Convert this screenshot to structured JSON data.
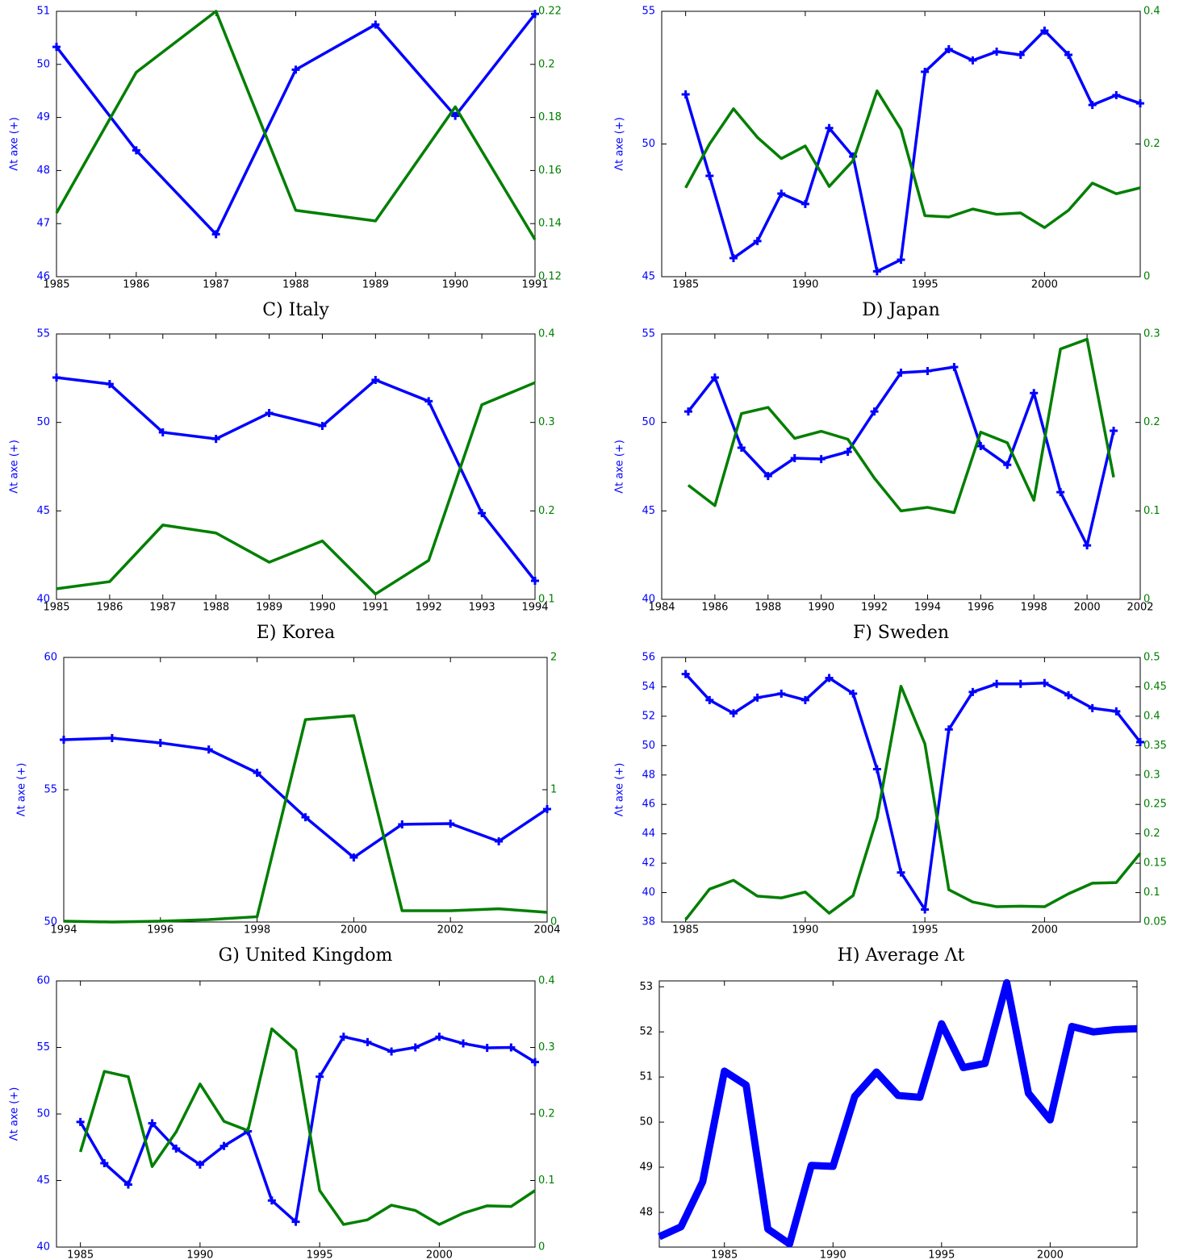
{
  "chart_data": [
    {
      "type": "line",
      "title": "C) Italy",
      "ylabel": "Λt axe (+)",
      "x": [
        1985,
        1986,
        1987,
        1988,
        1989,
        1990,
        1991
      ],
      "xlim": [
        1985,
        1991
      ],
      "xticks": [
        1985,
        1986,
        1987,
        1988,
        1989,
        1990,
        1991
      ],
      "ylim": [
        46,
        51
      ],
      "yticks": [
        46,
        47,
        48,
        49,
        50,
        51
      ],
      "y2lim": [
        0.12,
        0.22
      ],
      "y2ticks": [
        0.12,
        0.14,
        0.16,
        0.18,
        0.2,
        0.22
      ],
      "series": [
        {
          "color": "#0000ff",
          "marker": "+",
          "values": [
            50.33,
            48.38,
            46.8,
            49.9,
            50.75,
            49.03,
            50.95
          ]
        },
        {
          "color": "#007f00",
          "axis": "y2",
          "values": [
            0.144,
            0.197,
            0.22,
            0.145,
            0.141,
            0.184,
            0.134
          ]
        }
      ]
    },
    {
      "type": "line",
      "title": "D) Japan",
      "ylabel": "Λt axe (+)",
      "x": [
        1985,
        1986,
        1987,
        1988,
        1989,
        1990,
        1991,
        1992,
        1993,
        1994,
        1995,
        1996,
        1997,
        1998,
        1999,
        2000,
        2001,
        2002,
        2003,
        2004
      ],
      "xlim": [
        1984,
        2004
      ],
      "xticks": [
        1985,
        1990,
        1995,
        2000
      ],
      "ylim": [
        45,
        55
      ],
      "yticks": [
        45,
        50,
        55
      ],
      "y2lim": [
        0,
        0.4
      ],
      "y2ticks": [
        0,
        0.2,
        0.4
      ],
      "series": [
        {
          "color": "#0000ff",
          "marker": "+",
          "values": [
            51.87,
            48.8,
            45.7,
            46.34,
            48.13,
            47.74,
            50.6,
            49.53,
            45.2,
            45.64,
            52.72,
            53.57,
            53.15,
            53.48,
            53.36,
            54.27,
            53.36,
            51.47,
            51.84,
            51.53
          ]
        },
        {
          "color": "#007f00",
          "axis": "y2",
          "values": [
            0.134,
            0.2,
            0.253,
            0.21,
            0.178,
            0.197,
            0.136,
            0.175,
            0.28,
            0.222,
            0.092,
            0.09,
            0.102,
            0.094,
            0.096,
            0.074,
            0.1,
            0.141,
            0.125,
            0.134
          ]
        }
      ]
    },
    {
      "type": "line",
      "title": "E) Korea",
      "ylabel": "Λt axe (+)",
      "x": [
        1985,
        1986,
        1987,
        1988,
        1989,
        1990,
        1991,
        1992,
        1993,
        1994
      ],
      "xlim": [
        1985,
        1994
      ],
      "xticks": [
        1985,
        1986,
        1987,
        1988,
        1989,
        1990,
        1991,
        1992,
        1993,
        1994
      ],
      "ylim": [
        40,
        55
      ],
      "yticks": [
        40,
        45,
        50,
        55
      ],
      "y2lim": [
        0.1,
        0.4
      ],
      "y2ticks": [
        0.1,
        0.2,
        0.3,
        0.4
      ],
      "series": [
        {
          "color": "#0000ff",
          "marker": "+",
          "values": [
            52.54,
            52.17,
            49.44,
            49.07,
            50.53,
            49.8,
            52.4,
            51.2,
            44.87,
            41.05
          ]
        },
        {
          "color": "#007f00",
          "axis": "y2",
          "values": [
            0.112,
            0.12,
            0.184,
            0.175,
            0.142,
            0.166,
            0.106,
            0.144,
            0.32,
            0.345
          ]
        }
      ]
    },
    {
      "type": "line",
      "title": "F) Sweden",
      "ylabel": "Λt axe (+)",
      "x": [
        1985,
        1986,
        1987,
        1988,
        1989,
        1990,
        1991,
        1992,
        1993,
        1994,
        1995,
        1996,
        1997,
        1998,
        1999,
        2000,
        2001
      ],
      "xlim": [
        1984,
        2002
      ],
      "xticks": [
        1984,
        1986,
        1988,
        1990,
        1992,
        1994,
        1996,
        1998,
        2000,
        2002
      ],
      "ylim": [
        40,
        55
      ],
      "yticks": [
        40,
        45,
        50,
        55
      ],
      "y2lim": [
        0,
        0.3
      ],
      "y2ticks": [
        0,
        0.1,
        0.2,
        0.3
      ],
      "series": [
        {
          "color": "#0000ff",
          "marker": "+",
          "values": [
            50.62,
            52.54,
            48.57,
            46.97,
            47.98,
            47.93,
            48.34,
            50.62,
            52.81,
            52.9,
            53.13,
            48.66,
            47.6,
            51.66,
            46.06,
            43.05,
            49.53
          ]
        },
        {
          "color": "#007f00",
          "axis": "y2",
          "values": [
            0.129,
            0.106,
            0.21,
            0.217,
            0.182,
            0.19,
            0.181,
            0.137,
            0.1,
            0.104,
            0.098,
            0.189,
            0.177,
            0.112,
            0.283,
            0.294,
            0.138
          ]
        }
      ]
    },
    {
      "type": "line",
      "title": "G) United Kingdom",
      "ylabel": "Λt axe (+)",
      "x": [
        1994,
        1995,
        1996,
        1997,
        1998,
        1999,
        2000,
        2001,
        2002,
        2003,
        2004
      ],
      "xlim": [
        1994,
        2004
      ],
      "xticks": [
        1994,
        1996,
        1998,
        2000,
        2002,
        2004
      ],
      "ylim": [
        50,
        60
      ],
      "yticks": [
        50,
        55,
        60
      ],
      "y2lim": [
        0,
        2
      ],
      "y2ticks": [
        0,
        1,
        2
      ],
      "series": [
        {
          "color": "#0000ff",
          "marker": "+",
          "values": [
            56.89,
            56.95,
            56.77,
            56.52,
            55.64,
            53.96,
            52.44,
            53.69,
            53.72,
            53.05,
            54.27
          ]
        },
        {
          "color": "#007f00",
          "axis": "y2",
          "values": [
            0.006,
            0,
            0.006,
            0.018,
            0.04,
            1.53,
            1.56,
            0.085,
            0.085,
            0.1,
            0.073
          ]
        }
      ]
    },
    {
      "type": "line",
      "title": "H) Average Λt",
      "ylabel": "Λt axe (+)",
      "x": [
        1985,
        1986,
        1987,
        1988,
        1989,
        1990,
        1991,
        1992,
        1993,
        1994,
        1995,
        1996,
        1997,
        1998,
        1999,
        2000,
        2001,
        2002,
        2003,
        2004
      ],
      "xlim": [
        1984,
        2004
      ],
      "xticks": [
        1985,
        1990,
        1995,
        2000
      ],
      "ylim": [
        38,
        56
      ],
      "yticks": [
        38,
        40,
        42,
        44,
        46,
        48,
        50,
        52,
        54,
        56
      ],
      "y2lim": [
        0.05,
        0.5
      ],
      "y2ticks": [
        0.05,
        0.1,
        0.15,
        0.2,
        0.25,
        0.3,
        0.35,
        0.4,
        0.45,
        0.5
      ],
      "series": [
        {
          "color": "#0000ff",
          "marker": "+",
          "values": [
            54.87,
            53.1,
            52.2,
            53.26,
            53.54,
            53.1,
            54.6,
            53.54,
            48.4,
            41.37,
            38.85,
            51.1,
            53.65,
            54.2,
            54.2,
            54.26,
            53.43,
            52.55,
            52.33,
            50.24
          ]
        },
        {
          "color": "#007f00",
          "axis": "y2",
          "values": [
            0.054,
            0.106,
            0.121,
            0.094,
            0.091,
            0.101,
            0.065,
            0.095,
            0.227,
            0.451,
            0.353,
            0.105,
            0.084,
            0.076,
            0.077,
            0.076,
            0.098,
            0.116,
            0.117,
            0.167
          ]
        }
      ]
    },
    {
      "type": "line",
      "ylabel": "Λt axe (+)",
      "x": [
        1985,
        1986,
        1987,
        1988,
        1989,
        1990,
        1991,
        1992,
        1993,
        1994,
        1995,
        1996,
        1997,
        1998,
        1999,
        2000,
        2001,
        2002,
        2003,
        2004
      ],
      "xlim": [
        1984,
        2004
      ],
      "xticks": [
        1985,
        1990,
        1995,
        2000
      ],
      "ylim": [
        40,
        60
      ],
      "yticks": [
        40,
        45,
        50,
        55,
        60
      ],
      "y2lim": [
        0,
        0.4
      ],
      "y2ticks": [
        0,
        0.1,
        0.2,
        0.3,
        0.4
      ],
      "series": [
        {
          "color": "#0000ff",
          "marker": "+",
          "values": [
            49.4,
            46.3,
            44.7,
            49.3,
            47.4,
            46.2,
            47.6,
            48.7,
            43.5,
            41.9,
            52.8,
            55.8,
            55.4,
            54.7,
            55.0,
            55.8,
            55.3,
            54.97,
            55.0,
            53.9
          ]
        },
        {
          "color": "#007f00",
          "axis": "y2",
          "values": [
            0.143,
            0.264,
            0.256,
            0.121,
            0.173,
            0.245,
            0.189,
            0.175,
            0.328,
            0.296,
            0.085,
            0.034,
            0.041,
            0.063,
            0.055,
            0.034,
            0.051,
            0.062,
            0.061,
            0.085
          ]
        }
      ]
    },
    {
      "type": "line",
      "x": [
        1982,
        1983,
        1984,
        1985,
        1986,
        1987,
        1988,
        1989,
        1990,
        1991,
        1992,
        1993,
        1994,
        1995,
        1996,
        1997,
        1998,
        1999,
        2000,
        2001,
        2002,
        2003,
        2004
      ],
      "xlim": [
        1982,
        2004
      ],
      "xticks": [
        1985,
        1990,
        1995,
        2000
      ],
      "ylim": [
        47.23,
        53.13
      ],
      "yticks": [
        48,
        49,
        50,
        51,
        52,
        53
      ],
      "series": [
        {
          "color": "#0000ff",
          "values": [
            47.46,
            47.68,
            48.68,
            51.13,
            50.82,
            47.63,
            47.3,
            49.04,
            49.02,
            50.57,
            51.11,
            50.59,
            50.55,
            52.18,
            51.21,
            51.3,
            53.09,
            50.64,
            50.05,
            52.12,
            52.0,
            52.05,
            52.07
          ]
        }
      ]
    }
  ]
}
